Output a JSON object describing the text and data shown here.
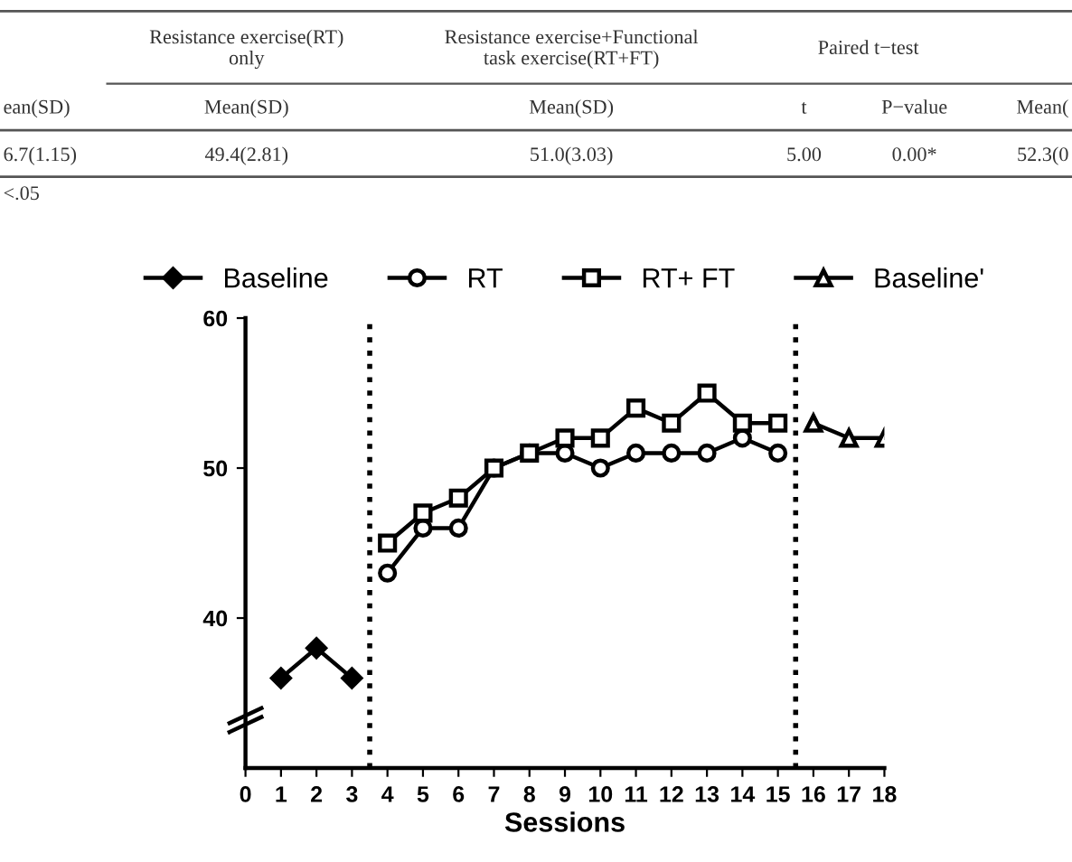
{
  "chart_data": {
    "type": "line",
    "xlabel": "Sessions",
    "xlim": [
      0,
      18
    ],
    "xticks": [
      0,
      1,
      2,
      3,
      4,
      5,
      6,
      7,
      8,
      9,
      10,
      11,
      12,
      13,
      14,
      15,
      16,
      17,
      18
    ],
    "ylim": [
      30,
      60
    ],
    "yticks": [
      40,
      50,
      60
    ],
    "legend": "top",
    "grid": false,
    "series": [
      {
        "name": "Baseline",
        "color": "#000000",
        "marker": "diamond",
        "x": [
          1,
          2,
          3
        ],
        "values": [
          36,
          38,
          36
        ]
      },
      {
        "name": "RT",
        "color": "#000000",
        "marker": "circle",
        "x": [
          4,
          5,
          6,
          7,
          8,
          9,
          10,
          11,
          12,
          13,
          14,
          15
        ],
        "values": [
          43,
          46,
          46,
          50,
          51,
          51,
          50,
          51,
          51,
          51,
          52,
          51
        ]
      },
      {
        "name": "RT+ FT",
        "color": "#000000",
        "marker": "square",
        "x": [
          4,
          5,
          6,
          7,
          8,
          9,
          10,
          11,
          12,
          13,
          14,
          15
        ],
        "values": [
          45,
          47,
          48,
          50,
          51,
          52,
          52,
          54,
          53,
          55,
          53,
          53
        ]
      },
      {
        "name": "Baseline'",
        "color": "#000000",
        "marker": "triangle",
        "x": [
          16,
          17,
          18
        ],
        "values": [
          53,
          52,
          52
        ]
      }
    ],
    "ref_lines": [
      {
        "axis": "x",
        "value": 3.5,
        "line_style": "dotted",
        "color": "#000000"
      },
      {
        "axis": "x",
        "value": 15.5,
        "line_style": "dotted",
        "color": "#000000"
      }
    ],
    "annotations": [
      "Resistance exercise(RT)\nonly",
      "Resistance exercise+Functional\ntask exercise(RT+FT)",
      "Paired t−test",
      "ean(SD)",
      "Mean(SD)",
      "Mean(SD)",
      "t",
      "P−value",
      "Mean(",
      "6.7(1.15)",
      "49.4(2.81)",
      "51.0(3.03)",
      "5.00",
      "0.00*",
      "52.3(0",
      "<.05"
    ]
  }
}
